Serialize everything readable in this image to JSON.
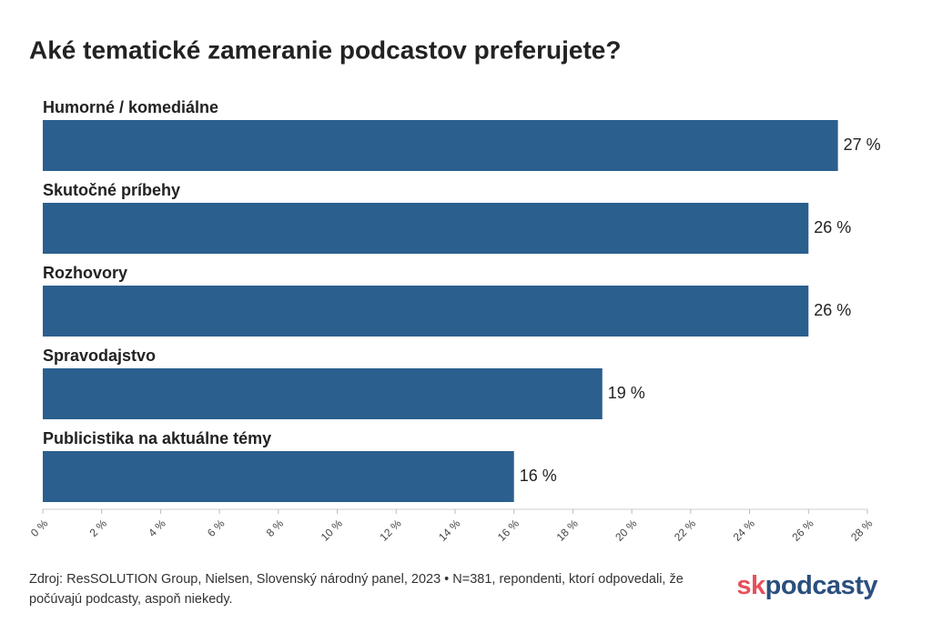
{
  "chart_data": {
    "type": "hbar",
    "title": "Aké tematické zameranie podcastov preferujete?",
    "categories": [
      "Humorné / komediálne",
      "Skutočné príbehy",
      "Rozhovory",
      "Spravodajstvo",
      "Publicistika na aktuálne témy"
    ],
    "values": [
      27,
      26,
      26,
      19,
      16
    ],
    "value_labels": [
      "27 %",
      "26 %",
      "26 %",
      "19 %",
      "16 %"
    ],
    "color": "#2b5f8e",
    "xlim": [
      0,
      28
    ],
    "xticks": [
      {
        "value": 0,
        "label": "0 %"
      },
      {
        "value": 2,
        "label": "2 %"
      },
      {
        "value": 4,
        "label": "4 %"
      },
      {
        "value": 6,
        "label": "6 %"
      },
      {
        "value": 8,
        "label": "8 %"
      },
      {
        "value": 10,
        "label": "10 %"
      },
      {
        "value": 12,
        "label": "12 %"
      },
      {
        "value": 14,
        "label": "14 %"
      },
      {
        "value": 16,
        "label": "16 %"
      },
      {
        "value": 18,
        "label": "18 %"
      },
      {
        "value": 20,
        "label": "20 %"
      },
      {
        "value": 22,
        "label": "22 %"
      },
      {
        "value": 24,
        "label": "24 %"
      },
      {
        "value": 26,
        "label": "26 %"
      },
      {
        "value": 28,
        "label": "28 %"
      }
    ],
    "grid": false,
    "source": "Zdroj: ResSOLUTION Group, Nielsen, Slovenský národný panel, 2023 • N=381, repondenti, ktorí odpovedali, že počúvajú podcasty, aspoň niekedy.",
    "logo": [
      "sk",
      "podcasty"
    ]
  }
}
